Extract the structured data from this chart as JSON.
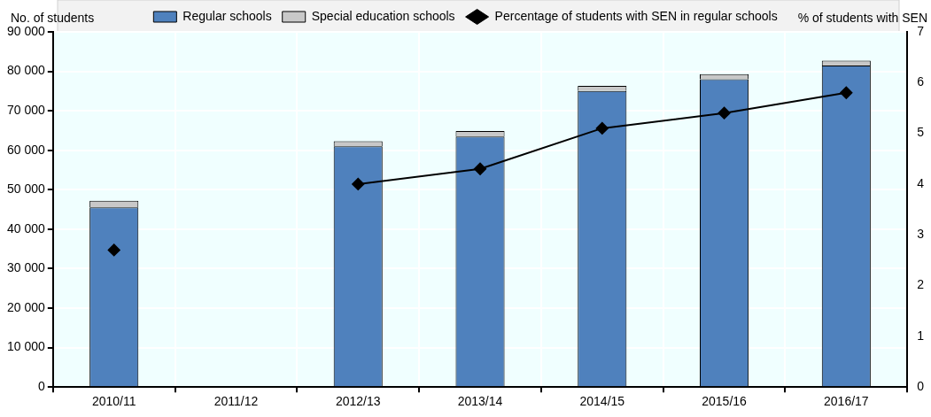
{
  "chart_data": {
    "type": "bar",
    "stacked": true,
    "categories": [
      "2010/11",
      "2011/12",
      "2012/13",
      "2013/14",
      "2014/15",
      "2015/16",
      "2016/17"
    ],
    "series": [
      {
        "name": "Regular schools",
        "color": "#4f81bd",
        "values": [
          45500,
          null,
          61000,
          63500,
          75000,
          78000,
          81500
        ]
      },
      {
        "name": "Special education schools",
        "color": "#c8c8c8",
        "values": [
          1700,
          null,
          1300,
          1400,
          1300,
          1300,
          1200
        ]
      },
      {
        "name": "Percentage of students with SEN in regular schools",
        "type": "line",
        "axis": "y2",
        "color": "#000000",
        "marker": "diamond",
        "values": [
          2.7,
          null,
          4.0,
          4.3,
          5.1,
          5.4,
          5.8
        ]
      }
    ],
    "ylabel": "No. of students",
    "y2label": "% of students with SEN",
    "ylim": [
      0,
      90000
    ],
    "yticks": [
      0,
      {
        "value": 10000,
        "label": "10 000"
      },
      {
        "value": 20000,
        "label": "20 000"
      },
      {
        "value": 30000,
        "label": "30 000"
      },
      {
        "value": 40000,
        "label": "40 000"
      },
      {
        "value": 50000,
        "label": "50 000"
      },
      {
        "value": 60000,
        "label": "60 000"
      },
      {
        "value": 70000,
        "label": "70 000"
      },
      {
        "value": 80000,
        "label": "80 000"
      },
      {
        "value": 90000,
        "label": "90 000"
      }
    ],
    "y2lim": [
      0,
      7
    ],
    "y2ticks": [
      0,
      1,
      2,
      3,
      4,
      5,
      6,
      7
    ],
    "grid": true,
    "legend": "top"
  }
}
